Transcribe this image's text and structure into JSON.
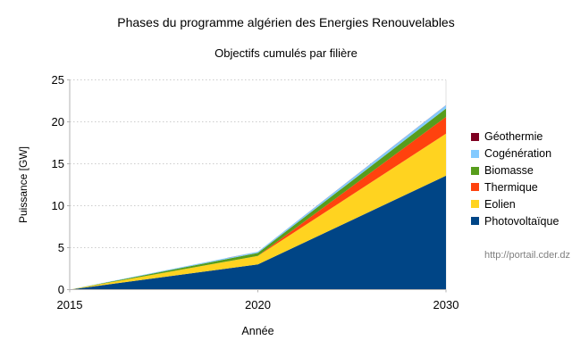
{
  "chart_data": {
    "type": "area",
    "stacked": true,
    "title": "Phases du programme algérien des Energies Renouvelables",
    "subtitle": "Objectifs cumulés par filière",
    "xlabel": "Année",
    "ylabel": "Puissance [GW]",
    "source_annotation": "http://portail.cder.dz",
    "categories": [
      "2015",
      "2020",
      "2030"
    ],
    "ylim": [
      0,
      25
    ],
    "yticks": [
      0,
      5,
      10,
      15,
      20,
      25
    ],
    "grid": "horizontal-dotted",
    "legend_position": "right",
    "series": [
      {
        "name": "Photovoltaïque",
        "color": "#004586",
        "values": [
          0,
          3.0,
          13.575
        ]
      },
      {
        "name": "Eolien",
        "color": "#FFD320",
        "values": [
          0,
          1.01,
          5.01
        ]
      },
      {
        "name": "Thermique",
        "color": "#FF420E",
        "values": [
          0,
          0,
          2.0
        ]
      },
      {
        "name": "Biomasse",
        "color": "#579D1C",
        "values": [
          0,
          0.36,
          1.0
        ]
      },
      {
        "name": "Cogénération",
        "color": "#83CAFF",
        "values": [
          0,
          0.15,
          0.4
        ]
      },
      {
        "name": "Géothermie",
        "color": "#7E0021",
        "values": [
          0,
          0.005,
          0.015
        ]
      }
    ],
    "legend_order_top_to_bottom": [
      "Géothermie",
      "Cogénération",
      "Biomasse",
      "Thermique",
      "Eolien",
      "Photovoltaïque"
    ],
    "colors": {
      "axis_line": "#b3b3b3",
      "gridline": "#cccccc",
      "tick_label": "#000000",
      "source_text": "#7f7f7f"
    }
  }
}
